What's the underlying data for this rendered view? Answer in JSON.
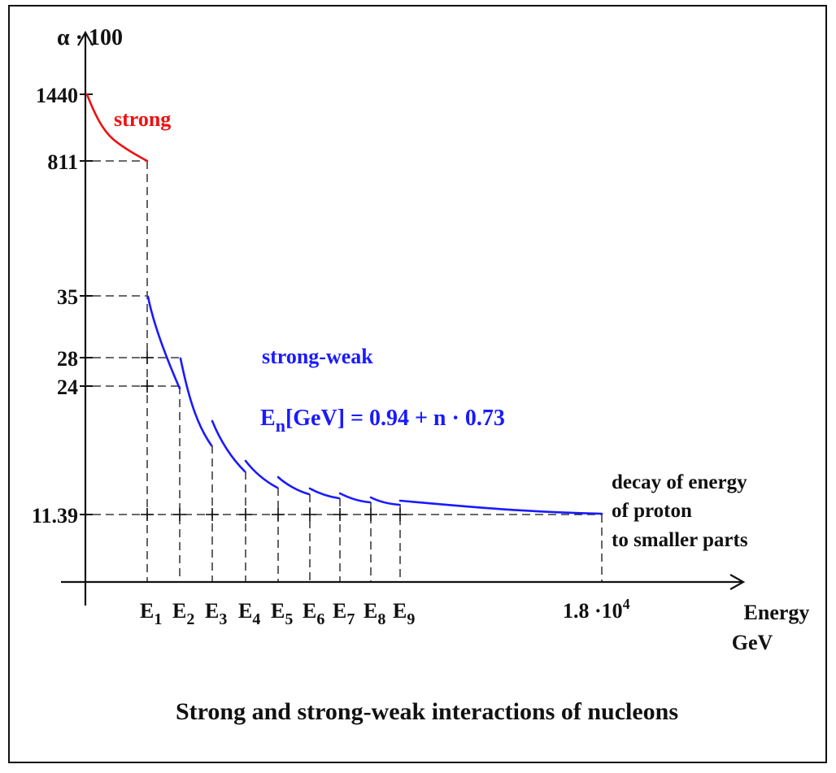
{
  "figure": {
    "caption": "Strong and strong-weak interactions of nucleons",
    "y_axis_label": "α · 100",
    "x_axis_label_line1": "Energy",
    "x_axis_label_line2": "GeV",
    "y_ticks": [
      "1440",
      "811",
      "35",
      "28",
      "24",
      "11.39"
    ],
    "x_ticks": [
      {
        "base": "E",
        "sub": "1"
      },
      {
        "base": "E",
        "sub": "2"
      },
      {
        "base": "E",
        "sub": "3"
      },
      {
        "base": "E",
        "sub": "4"
      },
      {
        "base": "E",
        "sub": "5"
      },
      {
        "base": "E",
        "sub": "6"
      },
      {
        "base": "E",
        "sub": "7"
      },
      {
        "base": "E",
        "sub": "8"
      },
      {
        "base": "E",
        "sub": "9"
      }
    ],
    "x_end_tick": {
      "mantissa": "1.8 ·10",
      "exp": "4"
    },
    "strong_label": "strong",
    "strong_weak_label": "strong-weak",
    "formula": {
      "base": "E",
      "sub": "n",
      "rest": "[GeV] = 0.94 + n · 0.73"
    },
    "note_lines": [
      "decay of energy",
      "of proton",
      "to smaller parts"
    ],
    "colors": {
      "strong": "#ee1111",
      "strong_weak": "#1a1aff",
      "axes": "#111111"
    }
  }
}
